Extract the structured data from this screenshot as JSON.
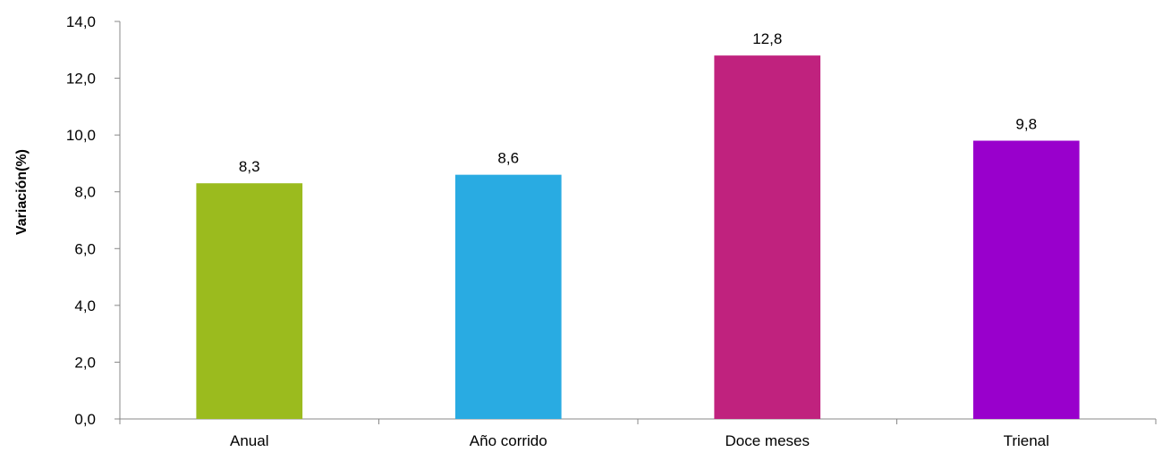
{
  "chart_data": {
    "type": "bar",
    "title": "",
    "xlabel": "",
    "ylabel": "Variación(%)",
    "categories": [
      "Anual",
      "Año corrido",
      "Doce meses",
      "Trienal"
    ],
    "values": [
      8.3,
      8.6,
      12.8,
      9.8
    ],
    "value_labels": [
      "8,3",
      "8,6",
      "12,8",
      "9,8"
    ],
    "bar_colors": [
      "#9BBB1E",
      "#29ABE2",
      "#C0227E",
      "#9900CC"
    ],
    "ylim": [
      0,
      14
    ],
    "yticks": [
      0,
      2,
      4,
      6,
      8,
      10,
      12,
      14
    ],
    "ytick_labels": [
      "0,0",
      "2,0",
      "4,0",
      "6,0",
      "8,0",
      "10,0",
      "12,0",
      "14,0"
    ],
    "grid": false,
    "legend": "none"
  }
}
